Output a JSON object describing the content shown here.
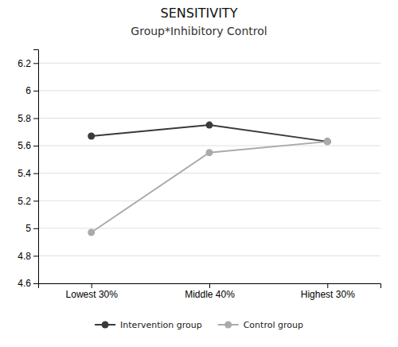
{
  "chart_data": {
    "type": "line",
    "title": "SENSITIVITY",
    "subtitle": "Group*Inhibitory Control",
    "categories": [
      "Lowest 30%",
      "Middle 40%",
      "Highest 30%"
    ],
    "series": [
      {
        "name": "Intervention group",
        "color": "#3a3a3a",
        "values": [
          5.67,
          5.75,
          5.63
        ]
      },
      {
        "name": "Control group",
        "color": "#aaaaaa",
        "values": [
          4.97,
          5.55,
          5.63
        ]
      }
    ],
    "ylim": [
      4.6,
      6.3
    ],
    "yticks": [
      4.6,
      4.8,
      5,
      5.2,
      5.4,
      5.6,
      5.8,
      6,
      6.2
    ],
    "grid": true,
    "legend": "bottom",
    "marker": "circle"
  }
}
